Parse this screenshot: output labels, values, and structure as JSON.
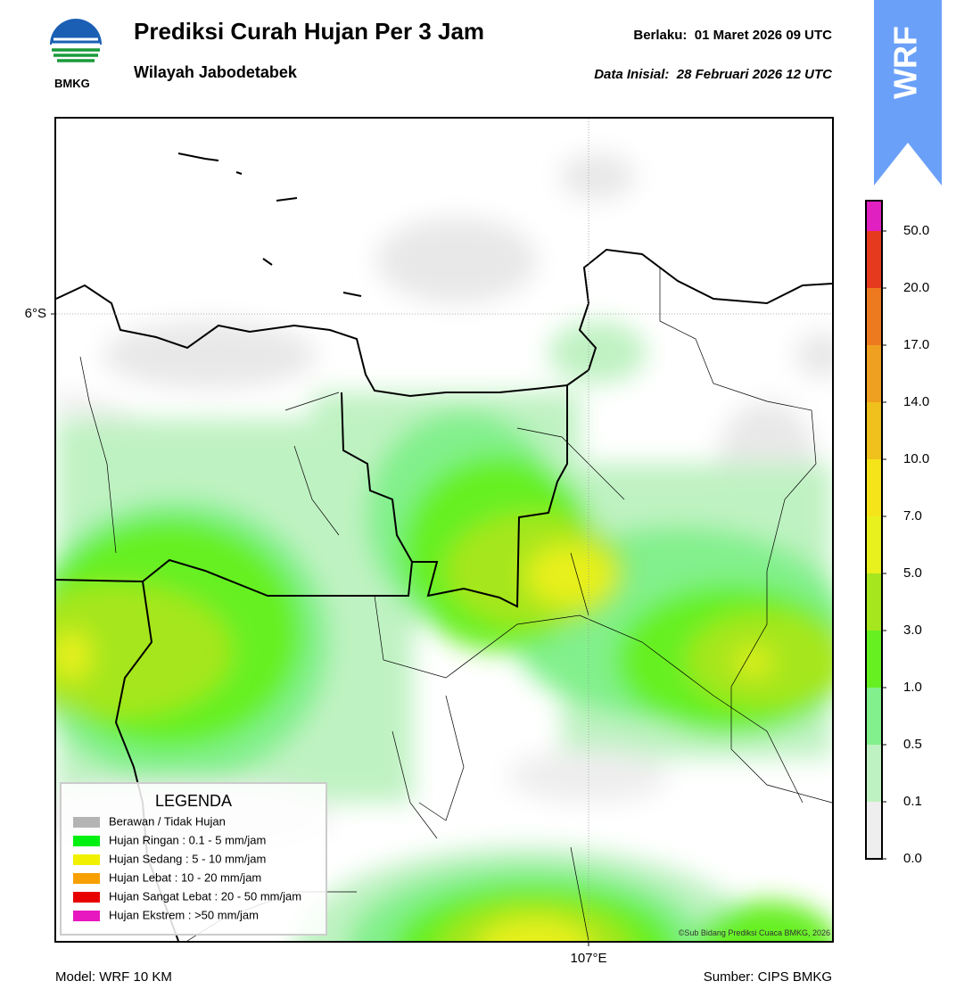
{
  "header": {
    "logo_text": "BMKG",
    "title": "Prediksi Curah Hujan Per 3 Jam",
    "subtitle": "Wilayah Jabodetabek",
    "valid_label": "Berlaku:",
    "valid": "01 Maret 2026 09 UTC",
    "init_label": "Data Inisial:",
    "init": "28 Februari 2026 12 UTC"
  },
  "badge": "WRF",
  "axes": {
    "lat_label": "6°S",
    "lon_label": "107°E"
  },
  "colorbar": {
    "ticks": [
      "0.0",
      "0.1",
      "0.5",
      "1.0",
      "3.0",
      "5.0",
      "7.0",
      "10.0",
      "14.0",
      "17.0",
      "20.0",
      "50.0"
    ],
    "colors": [
      "#eeeeee",
      "#bff2c2",
      "#82f08c",
      "#66f022",
      "#a6e61e",
      "#e8f01e",
      "#f6e41a",
      "#f0c01c",
      "#f0a020",
      "#ee7a20",
      "#e63a1e",
      "#e020c0"
    ]
  },
  "legend": {
    "title": "LEGENDA",
    "items": [
      {
        "name": "Berawan / Tidak Hujan",
        "color": "#b4b4b4"
      },
      {
        "name": "Hujan Ringan : 0.1 - 5 mm/jam",
        "color": "#00f010"
      },
      {
        "name": "Hujan Sedang : 5 - 10 mm/jam",
        "color": "#f0f000"
      },
      {
        "name": "Hujan Lebat : 10 - 20 mm/jam",
        "color": "#f8a000"
      },
      {
        "name": "Hujan Sangat Lebat : 20 - 50 mm/jam",
        "color": "#e80000"
      },
      {
        "name": "Hujan Ekstrem : >50 mm/jam",
        "color": "#e818c0"
      }
    ]
  },
  "copyright": "©Sub Bidang Prediksi Cuaca BMKG, 2026",
  "footer": {
    "model": "Model: WRF 10 KM",
    "source": "Sumber: CIPS BMKG"
  }
}
